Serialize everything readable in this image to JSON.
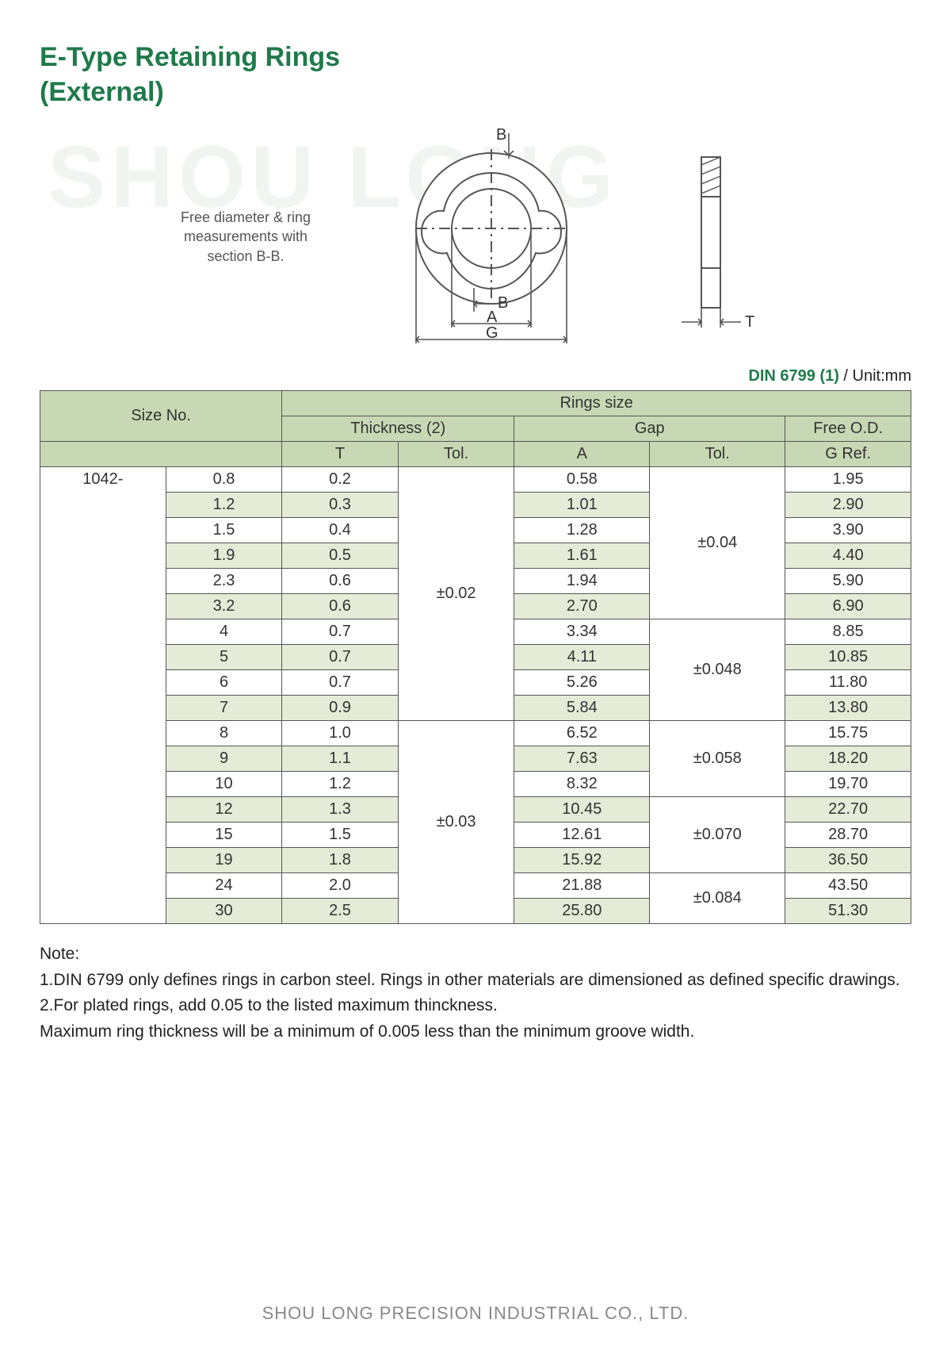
{
  "title_line1": "E-Type Retaining Rings",
  "title_line2": "(External)",
  "watermark": "SHOU LONG",
  "diagram": {
    "caption": "Free diameter & ring measurements with section B-B.",
    "labels": {
      "B_top": "B",
      "B_bot": "B",
      "A": "A",
      "G": "G",
      "T": "T"
    },
    "stroke": "#555555",
    "fill": "#ffffff"
  },
  "spec_header": {
    "din": "DIN 6799 (1)",
    "unit": " / Unit:mm"
  },
  "table": {
    "header_bg": "#c8d8b4",
    "alt_bg": "#e4ecd8",
    "border": "#555555",
    "col_widths_pct": [
      13,
      12,
      12,
      12,
      12,
      14,
      13
    ],
    "headers": {
      "size_no": "Size No.",
      "rings_size": "Rings size",
      "thickness": "Thickness (2)",
      "gap": "Gap",
      "free_od": "Free O.D.",
      "T": "T",
      "Tol1": "Tol.",
      "A": "A",
      "Tol2": "Tol.",
      "G": "G Ref."
    },
    "series_prefix": "1042-",
    "rows": [
      {
        "size": "0.8",
        "T": "0.2",
        "A": "0.58",
        "G": "1.95"
      },
      {
        "size": "1.2",
        "T": "0.3",
        "A": "1.01",
        "G": "2.90"
      },
      {
        "size": "1.5",
        "T": "0.4",
        "A": "1.28",
        "G": "3.90"
      },
      {
        "size": "1.9",
        "T": "0.5",
        "A": "1.61",
        "G": "4.40"
      },
      {
        "size": "2.3",
        "T": "0.6",
        "A": "1.94",
        "G": "5.90"
      },
      {
        "size": "3.2",
        "T": "0.6",
        "A": "2.70",
        "G": "6.90"
      },
      {
        "size": "4",
        "T": "0.7",
        "A": "3.34",
        "G": "8.85"
      },
      {
        "size": "5",
        "T": "0.7",
        "A": "4.11",
        "G": "10.85"
      },
      {
        "size": "6",
        "T": "0.7",
        "A": "5.26",
        "G": "11.80"
      },
      {
        "size": "7",
        "T": "0.9",
        "A": "5.84",
        "G": "13.80"
      },
      {
        "size": "8",
        "T": "1.0",
        "A": "6.52",
        "G": "15.75"
      },
      {
        "size": "9",
        "T": "1.1",
        "A": "7.63",
        "G": "18.20"
      },
      {
        "size": "10",
        "T": "1.2",
        "A": "8.32",
        "G": "19.70"
      },
      {
        "size": "12",
        "T": "1.3",
        "A": "10.45",
        "G": "22.70"
      },
      {
        "size": "15",
        "T": "1.5",
        "A": "12.61",
        "G": "28.70"
      },
      {
        "size": "19",
        "T": "1.8",
        "A": "15.92",
        "G": "36.50"
      },
      {
        "size": "24",
        "T": "2.0",
        "A": "21.88",
        "G": "43.50"
      },
      {
        "size": "30",
        "T": "2.5",
        "A": "25.80",
        "G": "51.30"
      }
    ],
    "tol_T": [
      {
        "value": "±0.02",
        "span": 10
      },
      {
        "value": "±0.03",
        "span": 8
      }
    ],
    "tol_A": [
      {
        "value": "±0.04",
        "span": 4
      },
      {
        "value": "",
        "span": 2
      },
      {
        "value": "±0.048",
        "span": 4
      },
      {
        "value": "±0.058",
        "span": 3
      },
      {
        "value": "±0.070",
        "span": 3
      },
      {
        "value": "±0.084",
        "span": 2
      }
    ],
    "tol_A_groups": [
      {
        "value": "±0.04",
        "span": 6
      },
      {
        "value": "±0.048",
        "span": 4
      },
      {
        "value": "±0.058",
        "span": 3
      },
      {
        "value": "±0.070",
        "span": 3
      },
      {
        "value": "±0.084",
        "span": 2
      }
    ]
  },
  "notes": {
    "heading": "Note:",
    "line1": "1.DIN 6799 only defines rings in carbon steel. Rings in other materials are dimensioned as defined specific drawings.",
    "line2": "2.For plated rings, add 0.05 to the listed maximum thinckness.",
    "line3": "Maximum ring thickness will be a minimum of 0.005 less than the minimum groove width."
  },
  "footer": "SHOU LONG PRECISION INDUSTRIAL CO., LTD."
}
